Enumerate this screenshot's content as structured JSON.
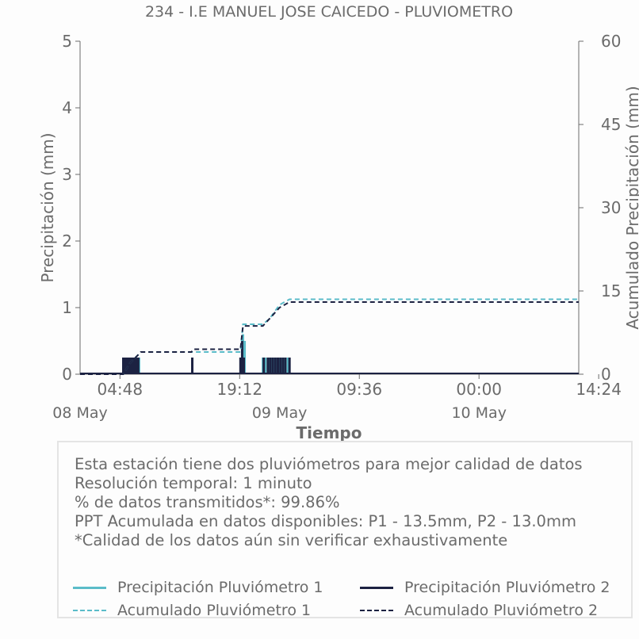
{
  "chart_data": {
    "type": "bar",
    "title": "234 - I.E MANUEL JOSE CAICEDO - PLUVIOMETRO",
    "xlabel": "Tiempo",
    "ylabel": "Precipitación (mm)",
    "y2label": "Acumulado Precipitación (mm)",
    "ylim": [
      0,
      5
    ],
    "y2lim": [
      0,
      60
    ],
    "yticks": [
      "0",
      "1",
      "2",
      "3",
      "4",
      "5"
    ],
    "y2ticks": [
      "0",
      "15",
      "30",
      "45",
      "60"
    ],
    "x_tick_labels": [
      "04:48",
      "19:12",
      "09:36",
      "00:00",
      "14:24"
    ],
    "x_date_labels": [
      "08 May",
      "09 May",
      "10 May"
    ],
    "x_range_hours": [
      0,
      60
    ],
    "x_tick_hours": [
      4.8,
      19.2,
      33.6,
      48.0,
      62.4
    ],
    "x_date_hours": [
      0,
      24,
      48
    ],
    "series": [
      {
        "name": "Precipitación Pluviómetro 1",
        "kind": "bar",
        "color": "#5bbcc9",
        "points": [
          [
            5.3,
            0.25
          ],
          [
            5.5,
            0.25
          ],
          [
            5.7,
            0.25
          ],
          [
            5.9,
            0.25
          ],
          [
            6.1,
            0.25
          ],
          [
            6.3,
            0.25
          ],
          [
            6.5,
            0.25
          ],
          [
            6.7,
            0.25
          ],
          [
            6.9,
            0.25
          ],
          [
            7.1,
            0.25
          ],
          [
            19.4,
            0.25
          ],
          [
            19.6,
            0.6
          ],
          [
            19.8,
            0.5
          ],
          [
            22.0,
            0.25
          ],
          [
            22.3,
            0.25
          ],
          [
            22.7,
            0.25
          ],
          [
            23.0,
            0.25
          ],
          [
            23.3,
            0.25
          ],
          [
            23.6,
            0.25
          ],
          [
            23.9,
            0.25
          ],
          [
            24.2,
            0.25
          ],
          [
            24.5,
            0.25
          ],
          [
            25.0,
            0.25
          ]
        ]
      },
      {
        "name": "Precipitación Pluviómetro 2",
        "kind": "bar",
        "color": "#1c2242",
        "points": [
          [
            5.2,
            0.25
          ],
          [
            5.4,
            0.25
          ],
          [
            5.6,
            0.25
          ],
          [
            5.8,
            0.25
          ],
          [
            6.0,
            0.25
          ],
          [
            6.2,
            0.25
          ],
          [
            6.4,
            0.25
          ],
          [
            6.6,
            0.25
          ],
          [
            6.8,
            0.25
          ],
          [
            7.0,
            0.25
          ],
          [
            13.5,
            0.25
          ],
          [
            19.3,
            0.25
          ],
          [
            19.5,
            0.5
          ],
          [
            19.7,
            0.25
          ],
          [
            22.1,
            0.25
          ],
          [
            22.6,
            0.25
          ],
          [
            22.9,
            0.25
          ],
          [
            23.2,
            0.25
          ],
          [
            23.5,
            0.25
          ],
          [
            23.8,
            0.25
          ],
          [
            24.1,
            0.25
          ],
          [
            24.4,
            0.25
          ],
          [
            24.7,
            0.25
          ],
          [
            25.2,
            0.25
          ]
        ]
      },
      {
        "name": "Acumulado Pluviómetro 1",
        "kind": "cumulative",
        "color": "#5bbcc9",
        "points": [
          [
            0,
            0
          ],
          [
            5.2,
            0
          ],
          [
            6.0,
            2.0
          ],
          [
            7.0,
            3.5
          ],
          [
            7.3,
            4.0
          ],
          [
            13.5,
            4.0
          ],
          [
            19.3,
            4.0
          ],
          [
            19.6,
            9.0
          ],
          [
            22.0,
            9.0
          ],
          [
            22.8,
            10.0
          ],
          [
            24.0,
            12.5
          ],
          [
            25.2,
            13.5
          ],
          [
            60,
            13.5
          ]
        ]
      },
      {
        "name": "Acumulado Pluviómetro 2",
        "kind": "cumulative",
        "color": "#1c2242",
        "points": [
          [
            0,
            0
          ],
          [
            5.2,
            0
          ],
          [
            6.0,
            2.0
          ],
          [
            7.0,
            3.5
          ],
          [
            7.3,
            4.0
          ],
          [
            13.4,
            4.0
          ],
          [
            13.6,
            4.5
          ],
          [
            19.3,
            4.5
          ],
          [
            19.6,
            8.7
          ],
          [
            22.0,
            8.7
          ],
          [
            22.8,
            10.0
          ],
          [
            24.0,
            12.0
          ],
          [
            25.2,
            13.0
          ],
          [
            60,
            13.0
          ]
        ]
      }
    ],
    "legend_position": "bottom",
    "grid": false
  },
  "info": {
    "line1": "Esta estación tiene dos pluviómetros para mejor calidad de datos",
    "line2": "Resolución temporal: 1 minuto",
    "line3": "% de datos transmitidos*: 99.86%",
    "line4": "PPT Acumulada en datos disponibles: P1 - 13.5mm, P2 - 13.0mm",
    "line5": "*Calidad de los datos aún sin verificar exhaustivamente"
  },
  "legend": {
    "p1": "Precipitación Pluviómetro 1",
    "p2": "Precipitación Pluviómetro 2",
    "a1": "Acumulado Pluviómetro 1",
    "a2": "Acumulado Pluviómetro 2"
  },
  "colors": {
    "p1": "#5bbcc9",
    "p2": "#1c2242",
    "axis": "#6b6b6b",
    "text": "#6b6b6b"
  }
}
